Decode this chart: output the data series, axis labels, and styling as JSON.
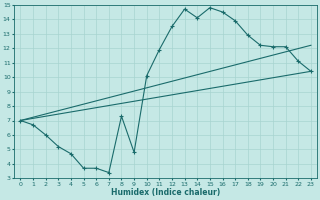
{
  "xlabel": "Humidex (Indice chaleur)",
  "xlim": [
    -0.5,
    23.5
  ],
  "ylim": [
    3,
    15
  ],
  "xticks": [
    0,
    1,
    2,
    3,
    4,
    5,
    6,
    7,
    8,
    9,
    10,
    11,
    12,
    13,
    14,
    15,
    16,
    17,
    18,
    19,
    20,
    21,
    22,
    23
  ],
  "yticks": [
    3,
    4,
    5,
    6,
    7,
    8,
    9,
    10,
    11,
    12,
    13,
    14,
    15
  ],
  "bg_color": "#c5e8e5",
  "line_color": "#1a6b6b",
  "grid_color": "#a8d4d0",
  "line1_x": [
    0,
    1,
    2,
    3,
    4,
    5,
    6,
    7,
    8,
    9,
    10,
    11,
    12,
    13,
    14,
    15,
    16,
    17,
    18,
    19,
    20,
    21,
    22,
    23
  ],
  "line1_y": [
    7.0,
    6.7,
    6.0,
    5.2,
    4.7,
    3.7,
    3.7,
    3.4,
    7.3,
    4.8,
    10.1,
    11.9,
    13.5,
    14.7,
    14.1,
    14.8,
    14.5,
    13.9,
    12.9,
    12.2,
    12.1,
    12.1,
    11.1,
    10.4
  ],
  "line2_x": [
    0,
    23
  ],
  "line2_y": [
    7.0,
    10.4
  ],
  "line3_x": [
    0,
    23
  ],
  "line3_y": [
    7.0,
    12.2
  ]
}
